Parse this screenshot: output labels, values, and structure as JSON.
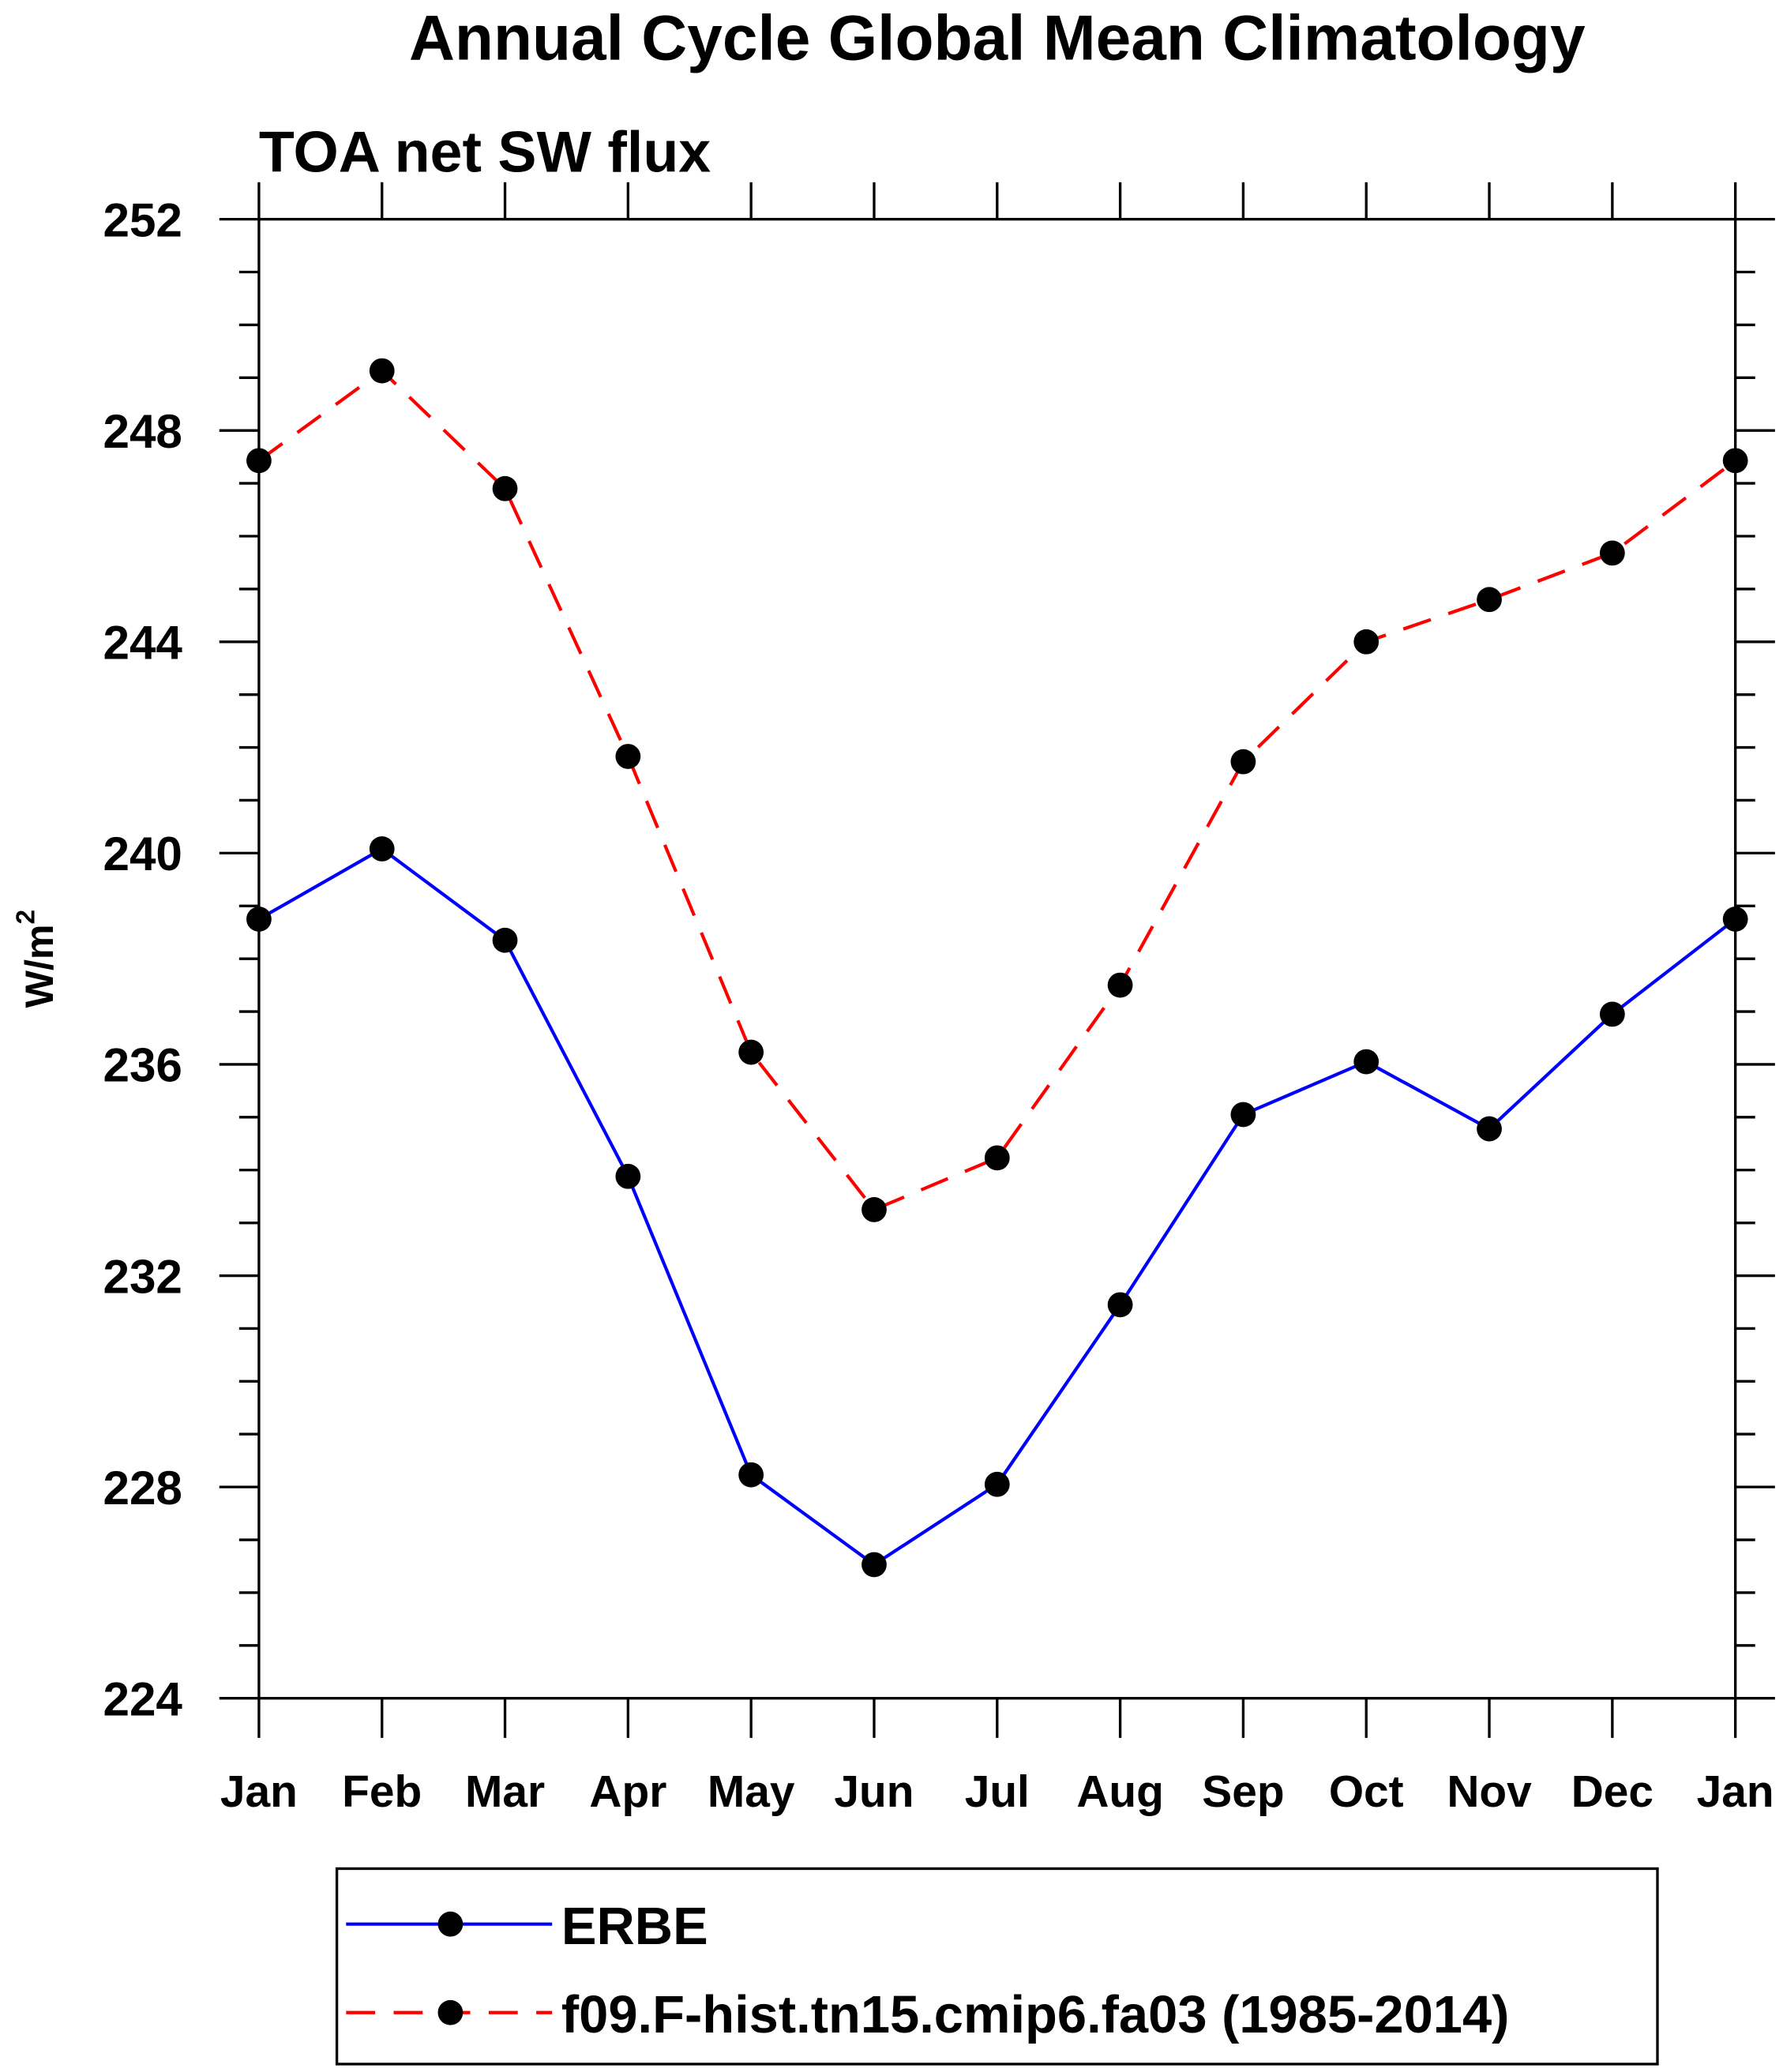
{
  "chart_data": {
    "type": "line",
    "title": "Annual Cycle Global Mean Climatology",
    "subtitle": "TOA net SW flux",
    "xlabel": "",
    "ylabel": "W/m",
    "ylabel_superscript": "2",
    "categories": [
      "Jan",
      "Feb",
      "Mar",
      "Apr",
      "May",
      "Jun",
      "Jul",
      "Aug",
      "Sep",
      "Oct",
      "Nov",
      "Dec",
      "Jan"
    ],
    "ylim": [
      224,
      252
    ],
    "yticks": [
      224,
      228,
      232,
      236,
      240,
      244,
      248,
      252
    ],
    "grid": false,
    "legend_placement": "bottom",
    "series": [
      {
        "name": "ERBE",
        "color": "#0000ff",
        "style": "solid",
        "values": [
          238.75,
          240.08,
          238.35,
          233.88,
          228.23,
          226.53,
          228.05,
          231.45,
          235.05,
          236.05,
          234.78,
          236.95,
          238.75
        ]
      },
      {
        "name": "f09.F-hist.tn15.cmip6.fa03 (1985-2014)",
        "color": "#ff0000",
        "style": "dashed",
        "values": [
          247.43,
          249.13,
          246.9,
          241.83,
          236.23,
          233.25,
          234.23,
          237.5,
          241.73,
          244.0,
          244.8,
          245.68,
          247.43
        ]
      }
    ]
  }
}
